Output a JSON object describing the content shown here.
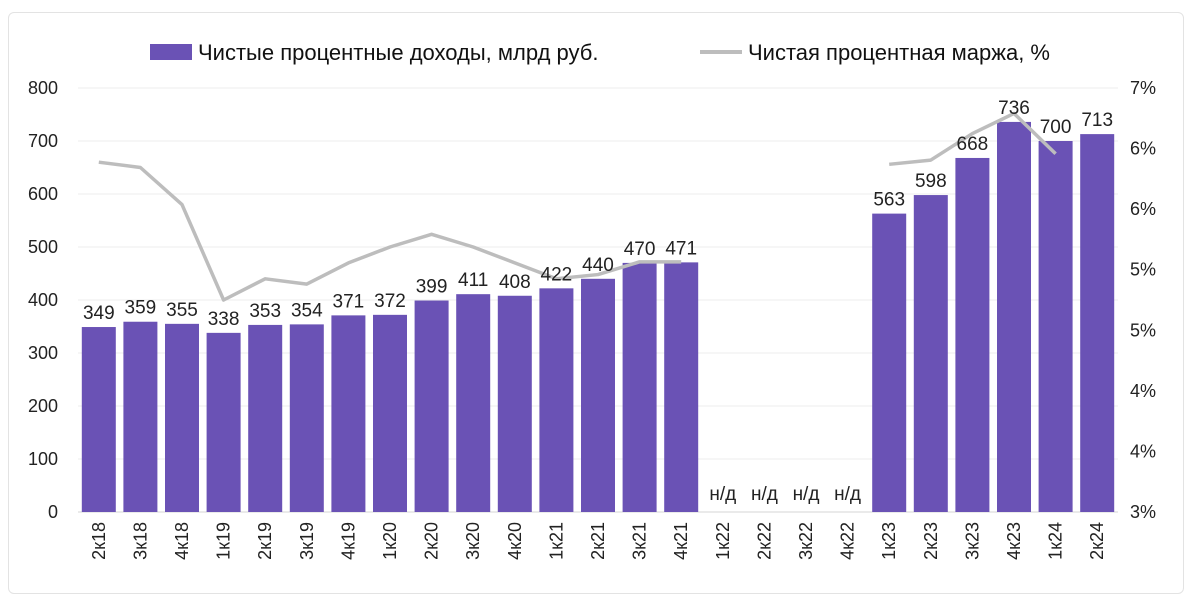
{
  "chart_data": {
    "type": "bar",
    "categories": [
      "2к18",
      "3к18",
      "4к18",
      "1к19",
      "2к19",
      "3к19",
      "4к19",
      "1к20",
      "2к20",
      "3к20",
      "4к20",
      "1к21",
      "2к21",
      "3к21",
      "4к21",
      "1к22",
      "2к22",
      "3к22",
      "4к22",
      "1к23",
      "2к23",
      "3к23",
      "4к23",
      "1к24",
      "2к24"
    ],
    "series": [
      {
        "name": "Чистые процентные доходы, млрд руб.",
        "type": "bar",
        "axis": "left",
        "color": "#6a52b5",
        "values": [
          349,
          359,
          355,
          338,
          353,
          354,
          371,
          372,
          399,
          411,
          408,
          422,
          440,
          470,
          471,
          null,
          null,
          null,
          null,
          563,
          598,
          668,
          736,
          700,
          713
        ],
        "labels": [
          "349",
          "359",
          "355",
          "338",
          "353",
          "354",
          "371",
          "372",
          "399",
          "411",
          "408",
          "422",
          "440",
          "470",
          "471",
          "н/д",
          "н/д",
          "н/д",
          "н/д",
          "563",
          "598",
          "668",
          "736",
          "700",
          "713"
        ]
      },
      {
        "name": "Чистая процентная маржа, %",
        "type": "line",
        "axis": "right",
        "color": "#bdbdbd",
        "values": [
          6.3,
          6.25,
          5.9,
          5.0,
          5.2,
          5.15,
          5.35,
          5.5,
          5.62,
          5.5,
          5.35,
          5.2,
          5.24,
          5.36,
          5.36,
          null,
          null,
          null,
          null,
          6.28,
          6.32,
          6.57,
          6.76,
          6.38,
          null
        ]
      }
    ],
    "y_left": {
      "ticks": [
        "0",
        "100",
        "200",
        "300",
        "400",
        "500",
        "600",
        "700",
        "800"
      ],
      "min": 0,
      "max": 800
    },
    "y_right": {
      "ticks": [
        "3%",
        "4%",
        "4%",
        "5%",
        "5%",
        "6%",
        "6%",
        "7%"
      ],
      "min": 3.0,
      "max": 7.0
    },
    "legend_position": "top",
    "grid": true
  }
}
